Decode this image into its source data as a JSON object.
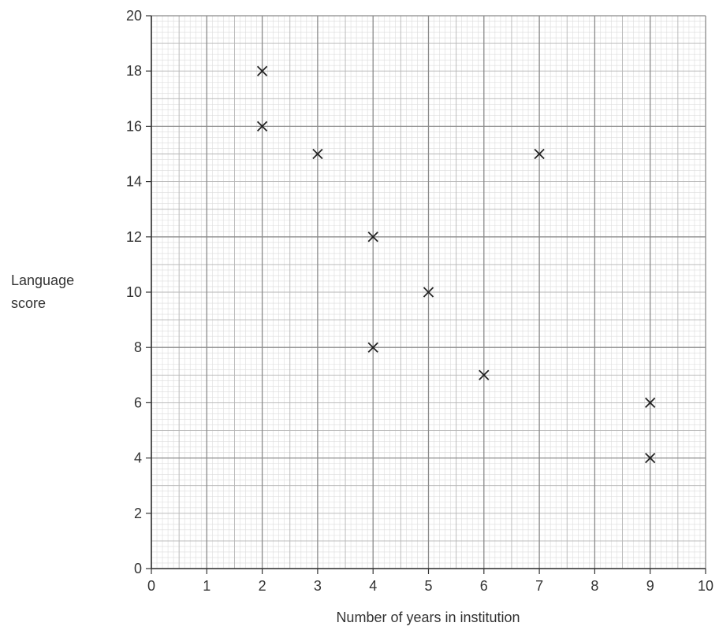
{
  "chart_data": {
    "type": "scatter",
    "title": "",
    "xlabel": "Number of years in institution",
    "ylabel_lines": [
      "Language",
      "score"
    ],
    "xlim": [
      0,
      10
    ],
    "ylim": [
      0,
      20
    ],
    "x_ticks": [
      0,
      1,
      2,
      3,
      4,
      5,
      6,
      7,
      8,
      9,
      10
    ],
    "y_ticks": [
      0,
      2,
      4,
      6,
      8,
      10,
      12,
      14,
      16,
      18,
      20
    ],
    "grid": true,
    "marker": "x",
    "points": [
      {
        "x": 2,
        "y": 18
      },
      {
        "x": 2,
        "y": 16
      },
      {
        "x": 3,
        "y": 15
      },
      {
        "x": 4,
        "y": 12
      },
      {
        "x": 4,
        "y": 8
      },
      {
        "x": 5,
        "y": 10
      },
      {
        "x": 6,
        "y": 7
      },
      {
        "x": 7,
        "y": 15
      },
      {
        "x": 9,
        "y": 6
      },
      {
        "x": 9,
        "y": 4
      }
    ]
  }
}
